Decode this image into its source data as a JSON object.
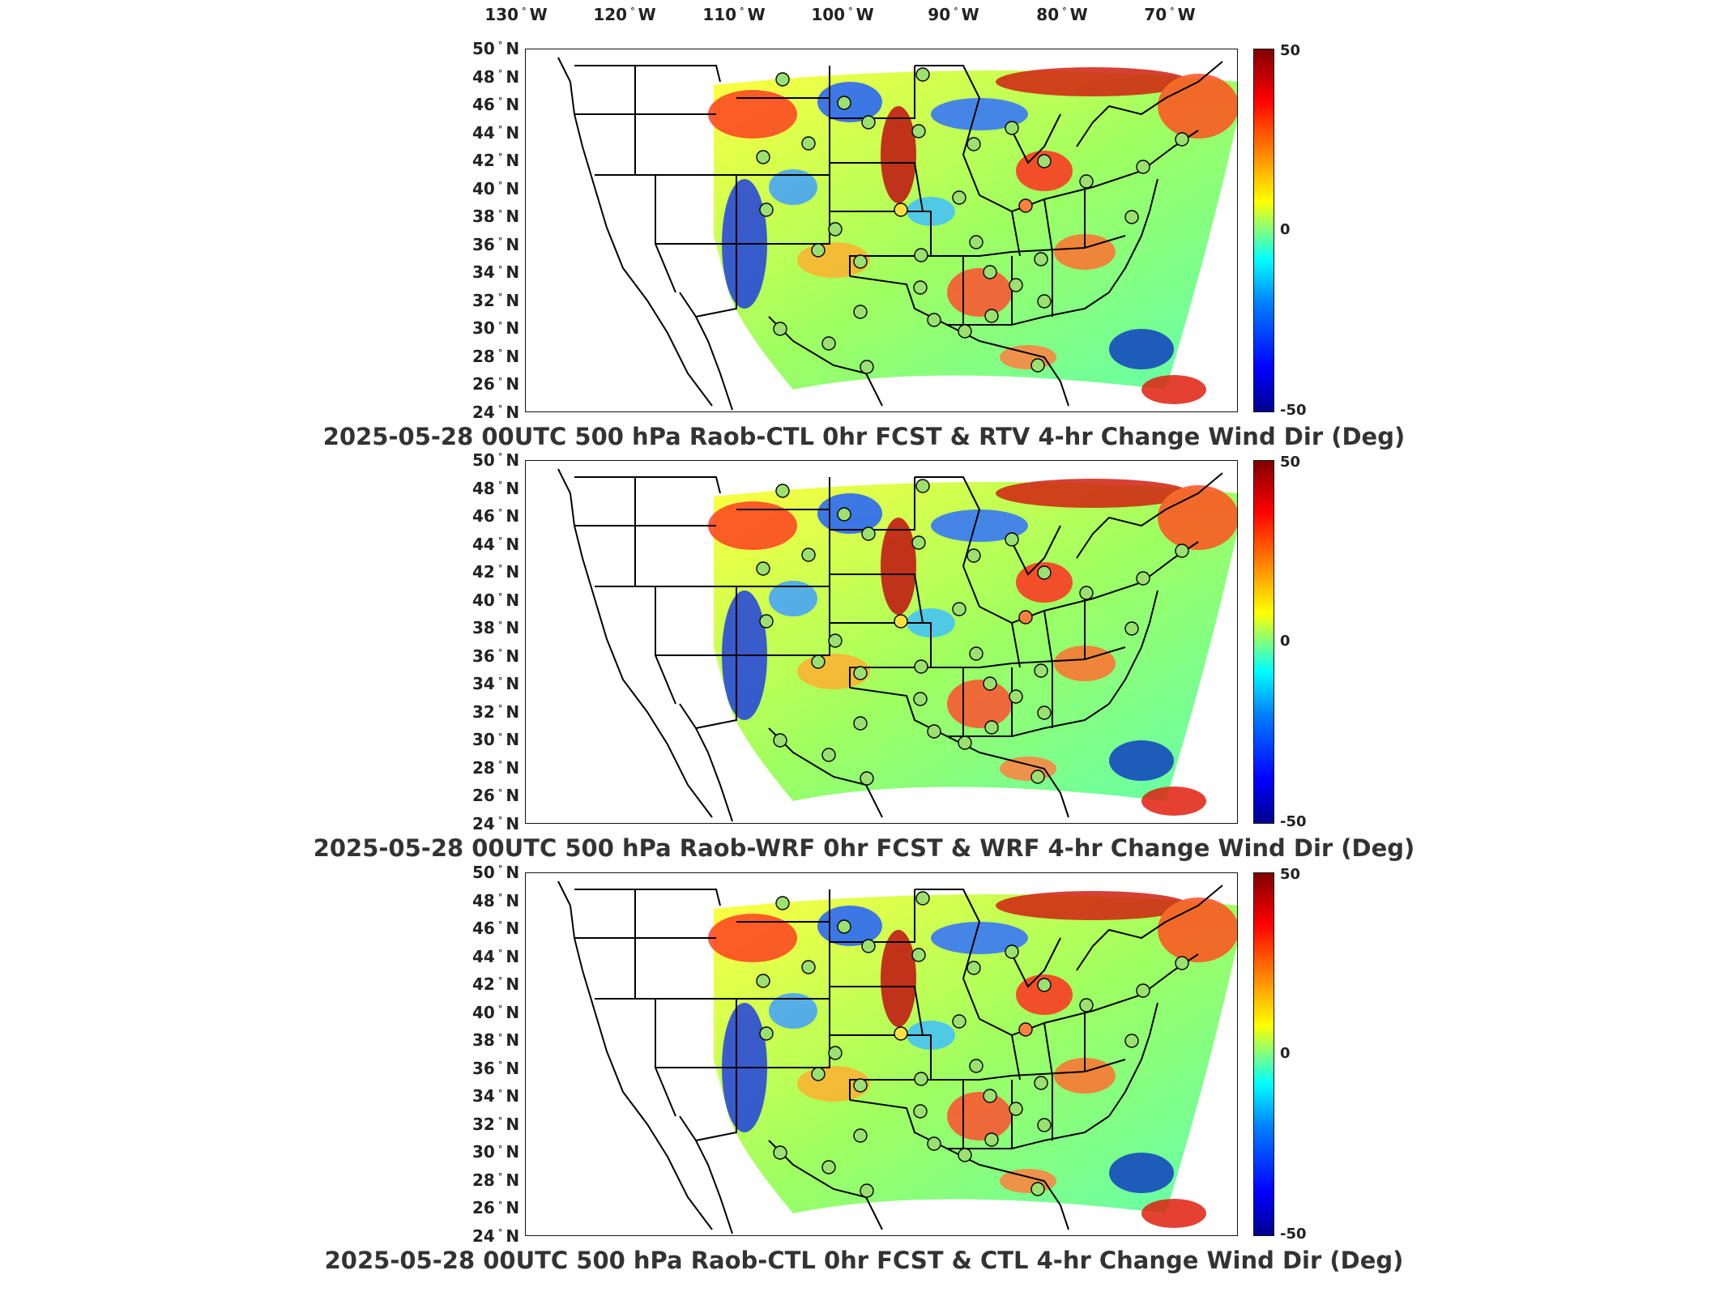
{
  "longitude_labels": [
    {
      "deg": "130",
      "hemi": "W"
    },
    {
      "deg": "120",
      "hemi": "W"
    },
    {
      "deg": "110",
      "hemi": "W"
    },
    {
      "deg": "100",
      "hemi": "W"
    },
    {
      "deg": "90",
      "hemi": "W"
    },
    {
      "deg": "80",
      "hemi": "W"
    },
    {
      "deg": "70",
      "hemi": "W"
    }
  ],
  "latitude_labels": [
    {
      "deg": "50",
      "hemi": "N"
    },
    {
      "deg": "48",
      "hemi": "N"
    },
    {
      "deg": "46",
      "hemi": "N"
    },
    {
      "deg": "44",
      "hemi": "N"
    },
    {
      "deg": "42",
      "hemi": "N"
    },
    {
      "deg": "40",
      "hemi": "N"
    },
    {
      "deg": "38",
      "hemi": "N"
    },
    {
      "deg": "36",
      "hemi": "N"
    },
    {
      "deg": "34",
      "hemi": "N"
    },
    {
      "deg": "32",
      "hemi": "N"
    },
    {
      "deg": "30",
      "hemi": "N"
    },
    {
      "deg": "28",
      "hemi": "N"
    },
    {
      "deg": "26",
      "hemi": "N"
    },
    {
      "deg": "24",
      "hemi": "N"
    }
  ],
  "colorbar": {
    "max_label": "50",
    "mid_label": "0",
    "min_label": "-50",
    "colors": [
      "#00008f",
      "#0000ff",
      "#0080ff",
      "#00ffff",
      "#80ff80",
      "#ffff00",
      "#ff8000",
      "#ff0000",
      "#800000"
    ]
  },
  "panels": [
    {
      "title": "2025-05-28 00UTC 500 hPa Raob-CTL 0hr FCST & RTV 4-hr Change Wind Dir (Deg)"
    },
    {
      "title": "2025-05-28 00UTC 500 hPa Raob-WRF 0hr FCST & WRF 4-hr Change Wind Dir (Deg)"
    },
    {
      "title": "2025-05-28 00UTC 500 hPa Raob-CTL 0hr FCST & CTL 4-hr Change Wind Dir (Deg)"
    }
  ]
}
